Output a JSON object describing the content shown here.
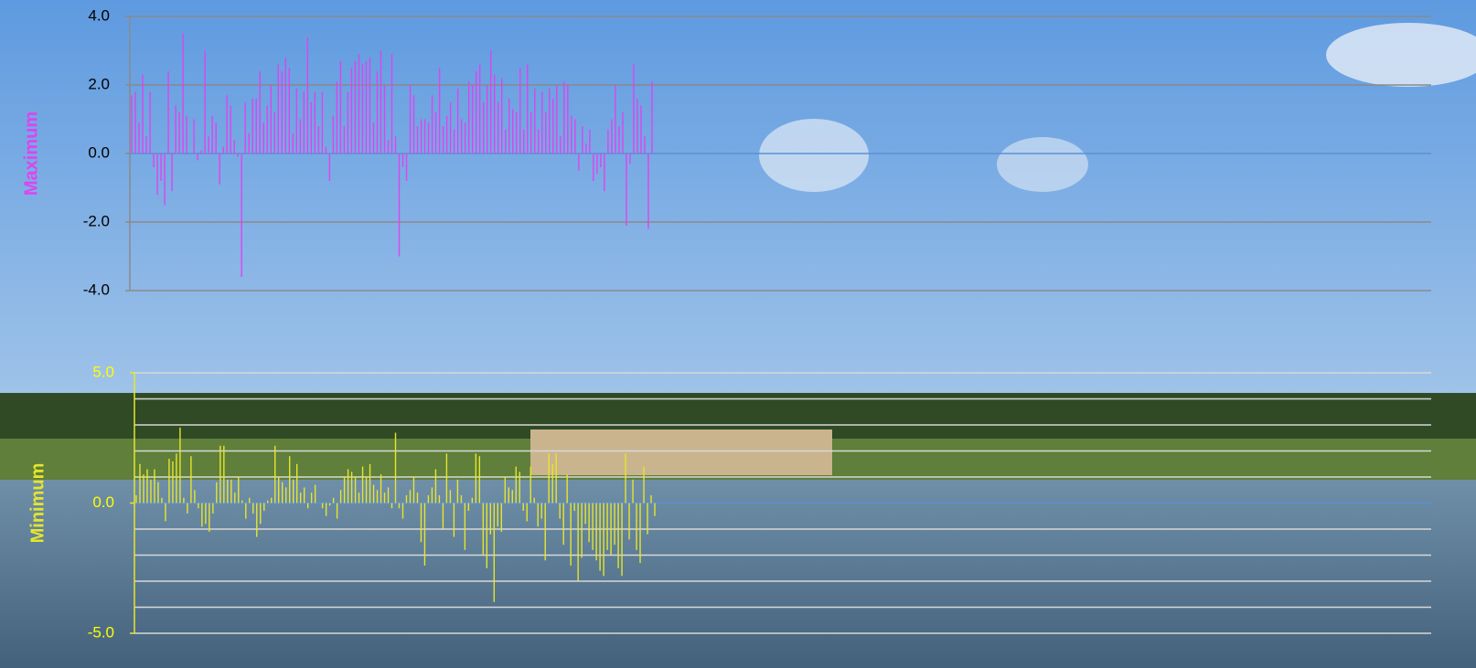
{
  "chart_data": [
    {
      "type": "bar",
      "ylabel": "Maximum",
      "color": "#dd44f0",
      "tick_label_color": "#000000",
      "grid_color": "#8a8a8a",
      "zero_color": "#5b8fd6",
      "ylim": [
        -4,
        4
      ],
      "yticks": [
        {
          "value": 4,
          "label": "4.0"
        },
        {
          "value": 2,
          "label": "2.0"
        },
        {
          "value": 0,
          "label": "0.0"
        },
        {
          "value": -2,
          "label": "-2.0"
        },
        {
          "value": -4,
          "label": "-4.0"
        }
      ],
      "grid": true,
      "values": [
        1.7,
        1.8,
        0.9,
        2.3,
        0.5,
        1.8,
        -0.4,
        -1.2,
        -0.8,
        -1.5,
        2.4,
        -1.1,
        1.4,
        1.2,
        3.5,
        1.1,
        0.0,
        1.0,
        -0.2,
        0.1,
        3.0,
        0.5,
        1.1,
        0.9,
        -0.9,
        0.2,
        1.7,
        1.4,
        0.4,
        -0.1,
        -3.6,
        1.5,
        0.6,
        1.6,
        1.6,
        2.4,
        0.9,
        1.4,
        2.0,
        1.2,
        2.6,
        2.4,
        2.8,
        2.5,
        0.6,
        1.9,
        1.0,
        1.8,
        3.4,
        1.5,
        1.8,
        0.8,
        1.8,
        0.2,
        -0.8,
        1.1,
        2.1,
        2.7,
        0.8,
        1.8,
        2.5,
        2.7,
        2.9,
        2.6,
        2.7,
        2.8,
        0.9,
        2.4,
        3.0,
        2.0,
        0.4,
        2.9,
        0.5,
        -3.0,
        -0.4,
        -0.8,
        2.0,
        1.7,
        0.8,
        1.0,
        1.0,
        0.9,
        1.7,
        1.2,
        2.5,
        0.8,
        1.1,
        1.5,
        0.7,
        1.9,
        1.0,
        0.9,
        2.1,
        2.0,
        2.4,
        2.6,
        1.5,
        2.0,
        3.0,
        2.3,
        1.5,
        2.2,
        0.7,
        1.6,
        1.3,
        1.2,
        2.5,
        0.7,
        2.6,
        1.2,
        1.9,
        0.7,
        1.8,
        1.2,
        1.9,
        1.6,
        2.0,
        0.5,
        2.1,
        2.0,
        1.1,
        1.0,
        -0.5,
        0.8,
        0.3,
        0.7,
        -0.8,
        -0.6,
        -0.4,
        -1.1,
        0.7,
        1.0,
        2.0,
        0.8,
        1.2,
        -2.1,
        -0.3,
        2.6,
        1.6,
        1.4,
        0.5,
        -2.2,
        2.1
      ]
    },
    {
      "type": "bar",
      "ylabel": "Minimum",
      "color": "#e6e62a",
      "tick_label_color": "#ffff00",
      "grid_color": "#d8d8d8",
      "zero_color": "#5b8fd6",
      "ylim": [
        -5,
        5
      ],
      "yticks": [
        {
          "value": 5,
          "label": "5.0"
        },
        {
          "value": 0,
          "label": "0.0"
        },
        {
          "value": -5,
          "label": "-5.0"
        }
      ],
      "minor_yticks": [
        4,
        3,
        2,
        1,
        -1,
        -2,
        -3,
        -4
      ],
      "grid": true,
      "values": [
        0.3,
        1.5,
        1.1,
        1.3,
        0.9,
        1.3,
        0.8,
        0.2,
        -0.7,
        1.7,
        1.6,
        1.9,
        2.9,
        0.2,
        -0.4,
        1.8,
        0.5,
        -0.2,
        -0.9,
        -0.8,
        -1.1,
        -0.4,
        0.8,
        2.2,
        2.2,
        0.9,
        0.9,
        0.4,
        1.0,
        0.1,
        -0.6,
        0.2,
        -0.4,
        -1.3,
        -0.8,
        -0.3,
        0.1,
        0.2,
        2.2,
        1.0,
        0.8,
        0.6,
        1.8,
        0.9,
        1.5,
        0.4,
        0.6,
        -0.2,
        0.4,
        0.7,
        0.0,
        -0.2,
        -0.5,
        -0.1,
        0.2,
        -0.6,
        0.5,
        1.0,
        1.3,
        1.2,
        1.0,
        0.4,
        1.4,
        1.0,
        1.5,
        0.7,
        0.5,
        1.1,
        0.4,
        0.6,
        -0.2,
        2.7,
        -0.2,
        -0.6,
        0.3,
        0.5,
        1.0,
        0.4,
        -1.5,
        -2.4,
        0.3,
        0.6,
        1.3,
        0.3,
        -1.0,
        1.9,
        0.5,
        -1.3,
        0.9,
        0.3,
        -1.8,
        -0.3,
        0.2,
        1.9,
        1.8,
        -2.0,
        -2.5,
        -1.2,
        -3.8,
        -0.9,
        -1.1,
        1.0,
        0.6,
        0.5,
        1.4,
        1.2,
        -0.3,
        -0.7,
        1.4,
        0.2,
        -0.9,
        -0.6,
        -2.2,
        1.9,
        1.5,
        1.9,
        -0.6,
        -1.6,
        1.1,
        -2.4,
        -0.3,
        -3.0,
        -2.1,
        -0.8,
        -1.5,
        -1.8,
        -2.2,
        -2.6,
        -2.8,
        -1.8,
        -2.0,
        -1.6,
        -2.5,
        -2.8,
        1.9,
        -1.4,
        0.9,
        -1.8,
        -2.3,
        1.4,
        -1.2,
        0.3,
        -0.5
      ]
    }
  ]
}
